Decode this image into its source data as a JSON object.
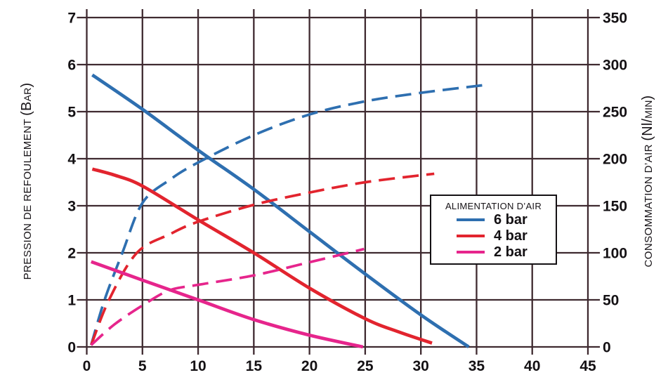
{
  "figure": {
    "y_left_title": {
      "main": "PRESSION DE REFOULEMENT ",
      "unit_open": "(B",
      "unit_small": "AR",
      "unit_close": ")"
    },
    "y_right_title": {
      "main": "CONSOMMATION D’AIR ",
      "unit_open": "(Nl/",
      "unit_small": "MIN",
      "unit_close": ")"
    }
  },
  "colors": {
    "grid": "#3f2a30",
    "text": "#141114",
    "background": "#ffffff"
  },
  "chart_data": {
    "type": "line",
    "title": "",
    "xlabel": "",
    "x_axis": {
      "range": [
        0,
        45
      ],
      "ticks": [
        0,
        5,
        10,
        15,
        20,
        25,
        30,
        35,
        40,
        45
      ],
      "grid": true
    },
    "y_left": {
      "label": "PRESSION DE REFOULEMENT (BAR)",
      "range": [
        0,
        7
      ],
      "ticks": [
        0,
        1,
        2,
        3,
        4,
        5,
        6,
        7
      ],
      "grid": true
    },
    "y_right": {
      "label": "CONSOMMATION D’AIR (Nl/MIN)",
      "range": [
        0,
        350
      ],
      "ticks": [
        0,
        50,
        100,
        150,
        200,
        250,
        300,
        350
      ]
    },
    "legend": {
      "title": "ALIMENTATION D’AIR",
      "position": "right-middle",
      "items": [
        {
          "label": "6 bar",
          "color": "#2e6fb0"
        },
        {
          "label": "4 bar",
          "color": "#e2242e"
        },
        {
          "label": "2 bar",
          "color": "#e6258c"
        }
      ]
    },
    "series": [
      {
        "name": "6 bar - pression de refoulement",
        "axis": "left",
        "style": "solid",
        "color": "#2e6fb0",
        "points": [
          [
            0.5,
            5.78
          ],
          [
            5,
            5.05
          ],
          [
            10,
            4.18
          ],
          [
            15,
            3.35
          ],
          [
            20,
            2.45
          ],
          [
            25,
            1.55
          ],
          [
            30,
            0.68
          ],
          [
            34.3,
            0
          ]
        ]
      },
      {
        "name": "6 bar - consommation d'air",
        "axis": "right",
        "style": "dashed",
        "color": "#2e6fb0",
        "points": [
          [
            0.4,
            2
          ],
          [
            1.6,
            50
          ],
          [
            3.2,
            100
          ],
          [
            5,
            153
          ],
          [
            7.5,
            178
          ],
          [
            10,
            196
          ],
          [
            15,
            225
          ],
          [
            20,
            247
          ],
          [
            25,
            261
          ],
          [
            30,
            270
          ],
          [
            35.5,
            278
          ]
        ]
      },
      {
        "name": "4 bar - pression de refoulement",
        "axis": "left",
        "style": "solid",
        "color": "#e2242e",
        "points": [
          [
            0.5,
            3.78
          ],
          [
            2.5,
            3.65
          ],
          [
            5,
            3.42
          ],
          [
            10,
            2.7
          ],
          [
            15,
            2.0
          ],
          [
            20,
            1.25
          ],
          [
            25,
            0.6
          ],
          [
            28,
            0.32
          ],
          [
            31,
            0.08
          ]
        ]
      },
      {
        "name": "4 bar - consommation d'air",
        "axis": "right",
        "style": "dashed",
        "color": "#e2242e",
        "points": [
          [
            0.4,
            2
          ],
          [
            2,
            50
          ],
          [
            4.5,
            100
          ],
          [
            7.5,
            120
          ],
          [
            10,
            133
          ],
          [
            15,
            151
          ],
          [
            20,
            164
          ],
          [
            25,
            175
          ],
          [
            31.2,
            184
          ]
        ]
      },
      {
        "name": "2 bar - pression de refoulement",
        "axis": "left",
        "style": "solid",
        "color": "#e6258c",
        "points": [
          [
            0.4,
            1.81
          ],
          [
            5,
            1.42
          ],
          [
            10,
            1.0
          ],
          [
            15,
            0.58
          ],
          [
            20,
            0.25
          ],
          [
            24.8,
            0
          ]
        ]
      },
      {
        "name": "2 bar - consommation d'air",
        "axis": "right",
        "style": "dashed",
        "color": "#e6258c",
        "points": [
          [
            0.4,
            2
          ],
          [
            2.5,
            24
          ],
          [
            5,
            44
          ],
          [
            7.4,
            60
          ],
          [
            10,
            66
          ],
          [
            15,
            76
          ],
          [
            20,
            90
          ],
          [
            24.9,
            104
          ]
        ]
      }
    ]
  }
}
